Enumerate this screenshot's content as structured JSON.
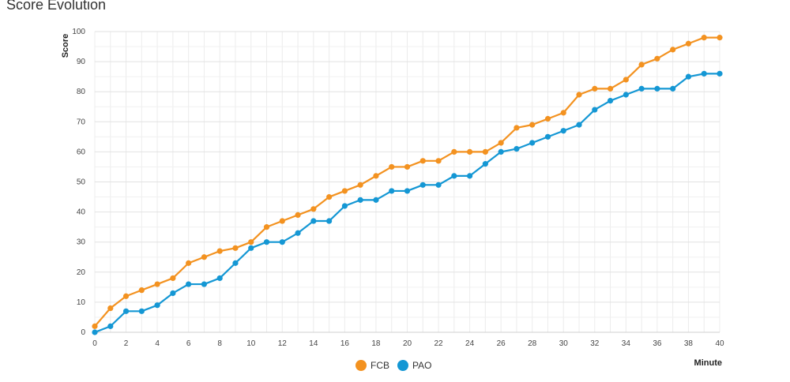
{
  "chart_data": {
    "type": "line",
    "title": "Score Evolution",
    "xlabel": "Minute",
    "ylabel": "Score",
    "xlim": [
      0,
      40
    ],
    "ylim": [
      0,
      100
    ],
    "x": [
      0,
      1,
      2,
      3,
      4,
      5,
      6,
      7,
      8,
      9,
      10,
      11,
      12,
      13,
      14,
      15,
      16,
      17,
      18,
      19,
      20,
      21,
      22,
      23,
      24,
      25,
      26,
      27,
      28,
      29,
      30,
      31,
      32,
      33,
      34,
      35,
      36,
      37,
      38,
      39,
      40
    ],
    "xticks": [
      "0",
      "2",
      "4",
      "6",
      "8",
      "10",
      "12",
      "14",
      "16",
      "18",
      "20",
      "22",
      "24",
      "26",
      "28",
      "30",
      "32",
      "34",
      "36",
      "38",
      "40"
    ],
    "yticks": [
      "0",
      "10",
      "20",
      "30",
      "40",
      "50",
      "60",
      "70",
      "80",
      "90",
      "100"
    ],
    "series": [
      {
        "name": "FCB",
        "color": "#f39220",
        "values": [
          2,
          8,
          12,
          14,
          16,
          18,
          23,
          25,
          27,
          28,
          30,
          35,
          37,
          39,
          41,
          45,
          47,
          49,
          52,
          55,
          55,
          57,
          57,
          60,
          60,
          60,
          63,
          68,
          69,
          71,
          73,
          79,
          81,
          81,
          84,
          89,
          91,
          94,
          96,
          98,
          98
        ]
      },
      {
        "name": "PAO",
        "color": "#1497d4",
        "values": [
          0,
          2,
          7,
          7,
          9,
          13,
          16,
          16,
          18,
          23,
          28,
          30,
          30,
          33,
          37,
          37,
          42,
          44,
          44,
          47,
          47,
          49,
          49,
          52,
          52,
          56,
          60,
          61,
          63,
          65,
          67,
          69,
          74,
          77,
          79,
          81,
          81,
          81,
          85,
          86,
          86
        ]
      }
    ],
    "grid": true,
    "legend": "bottom-center"
  }
}
